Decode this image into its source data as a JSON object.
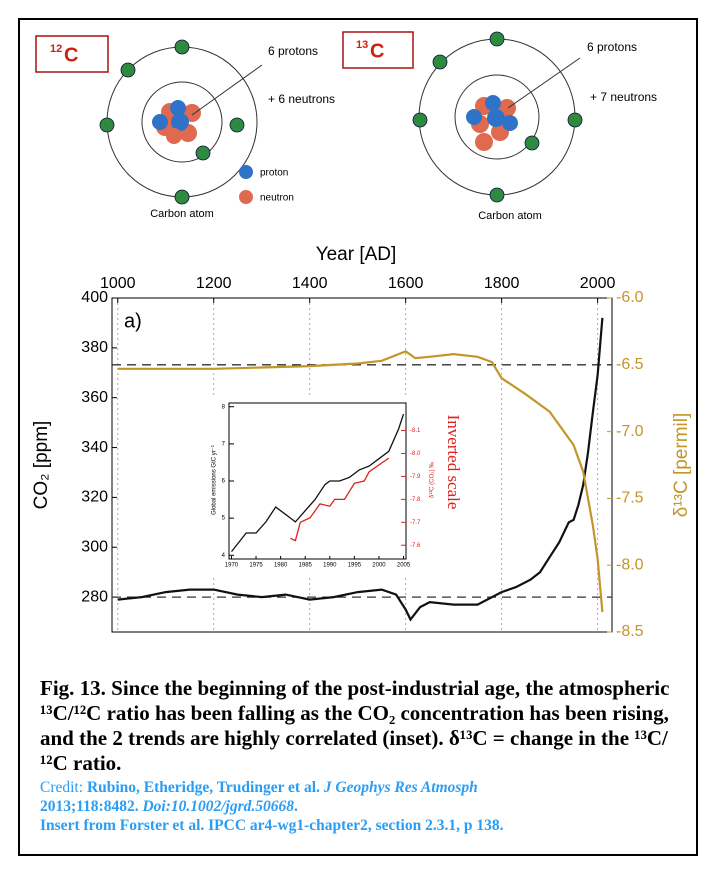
{
  "atoms": [
    {
      "mass": "12",
      "symbol": "C",
      "protons": "6 protons",
      "neutrons": "+ 6 neutrons",
      "label": "Carbon atom",
      "legend": [
        "proton",
        "neutron"
      ]
    },
    {
      "mass": "13",
      "symbol": "C",
      "protons": "6 protons",
      "neutrons": "+ 7 neutrons",
      "label": "Carbon atom"
    }
  ],
  "chart_data": [
    {
      "type": "line",
      "title": "Year [AD]",
      "panel_label": "a)",
      "y_label": "CO₂ [ppm]",
      "y2_label": "δ¹³C [permil]",
      "xlim": [
        988,
        2030
      ],
      "xticks": [
        1000,
        1200,
        1400,
        1600,
        1800,
        2000
      ],
      "ylim": [
        266,
        400
      ],
      "yticks": [
        280,
        300,
        320,
        340,
        360,
        380,
        400
      ],
      "y2lim": [
        -8.5,
        -6
      ],
      "y2ticks": [
        {
          "value": -6,
          "label": "-6.0"
        },
        -6.5,
        {
          "value": -7,
          "label": "-7.0"
        },
        -7.5,
        {
          "value": -8,
          "label": "-8.0"
        },
        -8.5
      ],
      "grid": true,
      "reference_lines": [
        {
          "axis": "y",
          "value": 280
        },
        {
          "axis": "y2",
          "value": -6.5
        }
      ],
      "series": [
        {
          "color": "#111111",
          "x": [
            1000,
            1050,
            1100,
            1150,
            1200,
            1250,
            1300,
            1350,
            1400,
            1450,
            1500,
            1550,
            1580,
            1600,
            1610,
            1630,
            1650,
            1700,
            1750,
            1800,
            1830,
            1860,
            1880,
            1900,
            1920,
            1940,
            1950,
            1960,
            1970,
            1980,
            1990,
            2000,
            2010
          ],
          "values": [
            279,
            280,
            282,
            283,
            283,
            281,
            280,
            281,
            279,
            280,
            282,
            283,
            281,
            275,
            271,
            276,
            278,
            277,
            277,
            282,
            284,
            287,
            290,
            296,
            302,
            310,
            311,
            317,
            325,
            338,
            354,
            369,
            392
          ]
        },
        {
          "color": "#c4962a",
          "axis": "y2",
          "x": [
            1000,
            1100,
            1200,
            1300,
            1400,
            1500,
            1550,
            1600,
            1620,
            1650,
            1700,
            1750,
            1780,
            1800,
            1850,
            1900,
            1950,
            1970,
            1990,
            2000,
            2010
          ],
          "values": [
            -6.53,
            -6.53,
            -6.53,
            -6.52,
            -6.51,
            -6.49,
            -6.47,
            -6.4,
            -6.45,
            -6.44,
            -6.42,
            -6.44,
            -6.48,
            -6.6,
            -6.72,
            -6.85,
            -7.1,
            -7.3,
            -7.7,
            -7.95,
            -8.35
          ]
        }
      ]
    },
    {
      "type": "line",
      "y_label": "Global emissions GtC yr⁻¹",
      "y2_label": "δ¹³C (CO₂) ‰",
      "annotation": "Inverted scale",
      "xlim": [
        1969.5,
        2005.5
      ],
      "xticks": [
        1970,
        1975,
        1980,
        1985,
        1990,
        1995,
        2000,
        2005
      ],
      "ylim": [
        3.9,
        8.1
      ],
      "yticks": [
        4,
        5,
        6,
        7,
        8
      ],
      "y2lim": [
        -7.54,
        -8.22
      ],
      "y2ticks": [
        -8.1,
        {
          "value": -8,
          "label": "-8.0"
        },
        -7.9,
        -7.8,
        -7.7,
        -7.6
      ],
      "grid": false,
      "series": [
        {
          "color": "#111111",
          "x": [
            1970,
            1973,
            1975,
            1977,
            1979,
            1980,
            1982,
            1983,
            1985,
            1987,
            1989,
            1990,
            1992,
            1994,
            1996,
            1998,
            2000,
            2002,
            2004,
            2005
          ],
          "values": [
            4.1,
            4.6,
            4.6,
            4.9,
            5.3,
            5.2,
            5.0,
            4.9,
            5.2,
            5.5,
            5.9,
            6.0,
            6.0,
            6.1,
            6.3,
            6.4,
            6.6,
            6.8,
            7.4,
            7.8
          ]
        },
        {
          "color": "#e0201a",
          "axis": "y2",
          "x": [
            1982,
            1983,
            1984,
            1986,
            1988,
            1990,
            1991,
            1993,
            1995,
            1997,
            1998,
            2000,
            2002
          ],
          "values": [
            -7.63,
            -7.62,
            -7.7,
            -7.72,
            -7.78,
            -7.77,
            -7.8,
            -7.8,
            -7.87,
            -7.88,
            -7.92,
            -7.95,
            -7.98
          ]
        }
      ]
    }
  ],
  "caption": {
    "figure_label": "Fig. 13.",
    "text": "Since the beginning of the post-industrial age, the atmospheric ¹³C/¹²C ratio has been falling as the CO₂ concentration has been rising, and the 2 trends are highly correlated (inset).  δ¹³C = change in the ¹³C/¹²C ratio."
  },
  "credit": {
    "label": "Credit:",
    "authors": "Rubino, Etheridge, Trudinger et al.",
    "journal": "J Geophys Res Atmosph",
    "citation": "2013;118:8482.",
    "doi": "Doi:10.1002/jgrd.50668",
    "doi_suffix": ".",
    "insert": "Insert from Forster et al. IPCC ar4-wg1-chapter2, section 2.3.1, p 138."
  }
}
